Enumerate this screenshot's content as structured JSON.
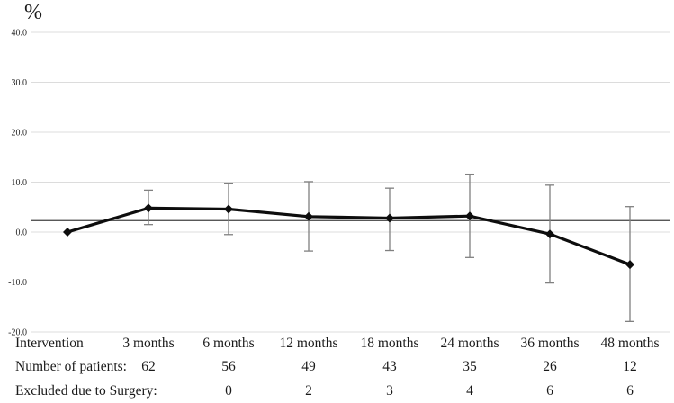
{
  "chart_data": {
    "type": "line",
    "title": "",
    "ylabel": "%",
    "xlabel": "",
    "x_categories": [
      "Intervention",
      "3 months",
      "6 months",
      "12 months",
      "18 months",
      "24 months",
      "36 months",
      "48 months"
    ],
    "series": [
      {
        "name": "mean-percent-change",
        "values": [
          0.0,
          4.8,
          4.6,
          3.1,
          2.8,
          3.2,
          -0.4,
          -6.5
        ],
        "error_high": [
          null,
          8.4,
          9.8,
          10.1,
          8.8,
          11.6,
          9.4,
          5.1
        ],
        "error_low": [
          null,
          1.5,
          -0.5,
          -3.8,
          -3.7,
          -5.1,
          -10.2,
          -17.9
        ]
      }
    ],
    "reference_line_y": 2.3,
    "ylim": [
      -20,
      40
    ],
    "yticks": [
      40,
      30,
      20,
      10,
      0,
      -10,
      -20
    ],
    "ytick_labels": [
      "40.0",
      "30.0",
      "20.0",
      "10.0",
      "0.0",
      "-10.0",
      "-20.0"
    ],
    "grid": "horizontal",
    "legend": "none",
    "marker": "diamond",
    "colors": {
      "line": "#0d0d0d",
      "marker": "#0d0d0d",
      "error_bar": "#808080",
      "grid": "#dcdcdc",
      "reference_line": "#404040",
      "text": "#1a1a1a",
      "tick_text": "#262626"
    }
  },
  "table": {
    "rows": [
      {
        "label": "Number of patients:",
        "values": [
          "62",
          "56",
          "49",
          "43",
          "35",
          "26",
          "12"
        ],
        "first_value_column": 1
      },
      {
        "label": "Excluded due to Surgery:",
        "values": [
          "0",
          "2",
          "3",
          "4",
          "6",
          "6"
        ],
        "first_value_column": 2
      }
    ]
  }
}
